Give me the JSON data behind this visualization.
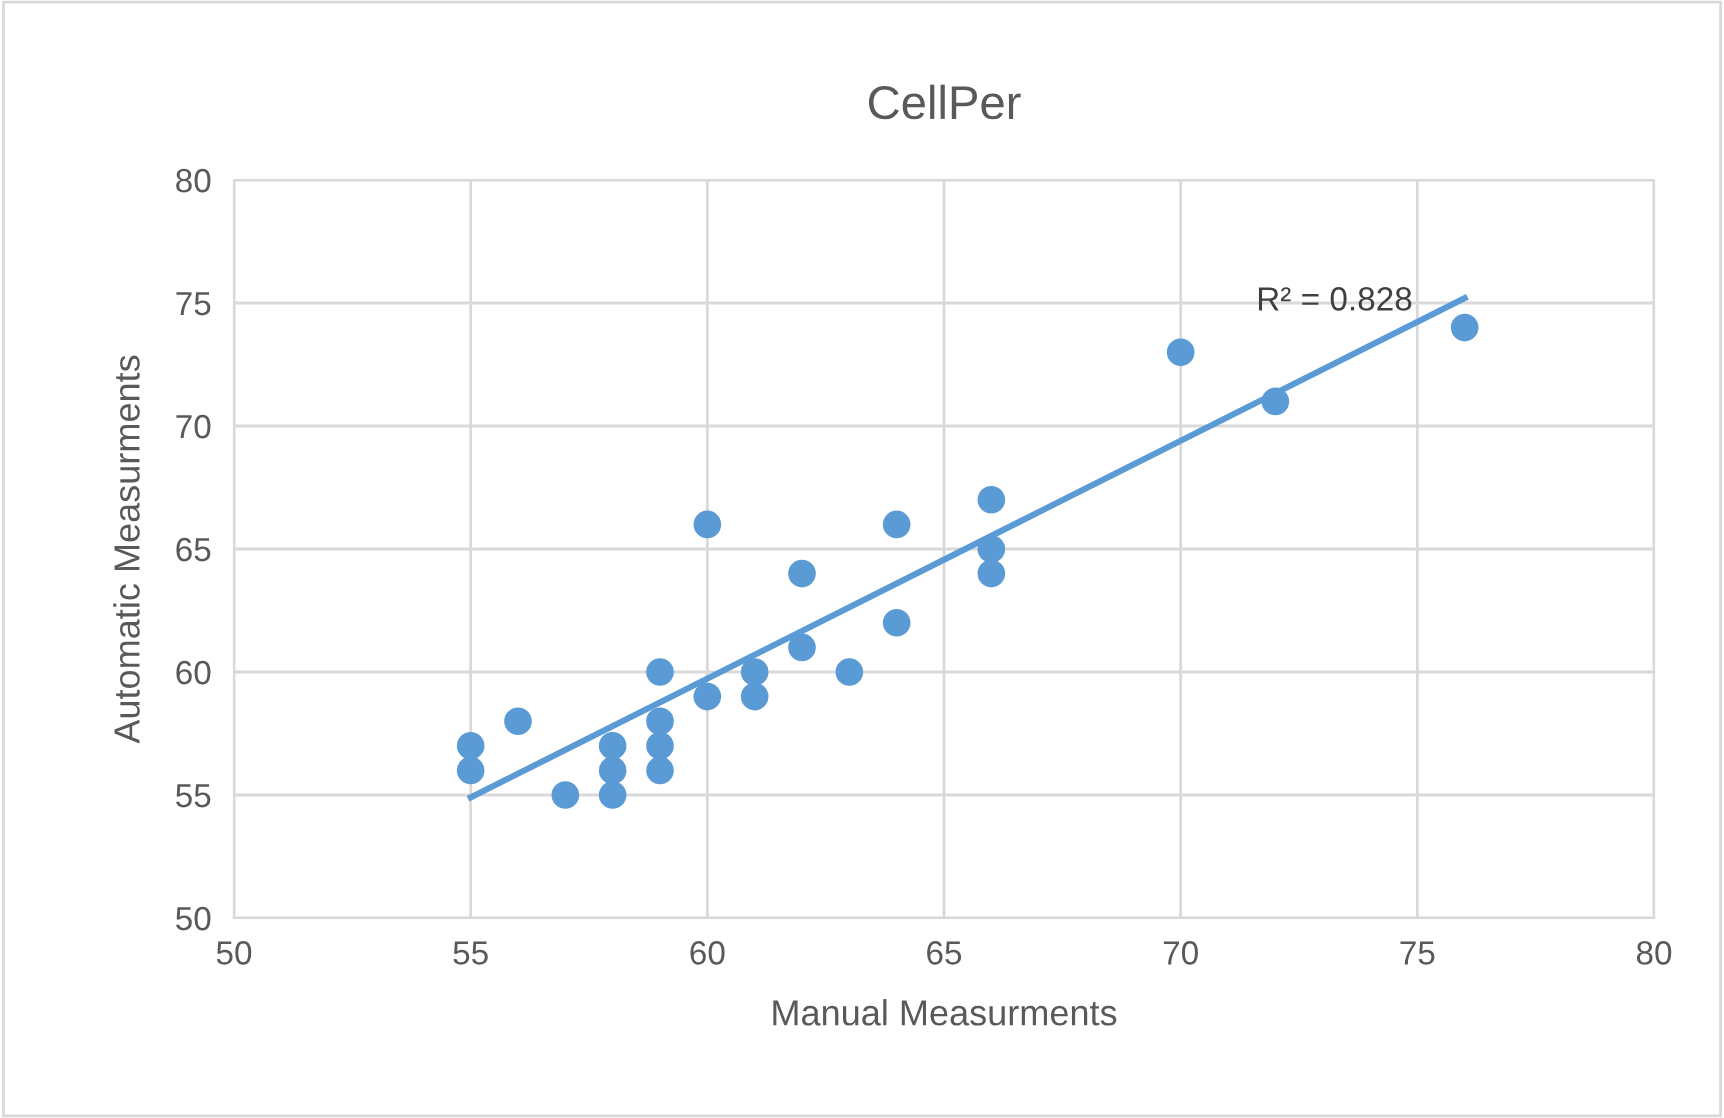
{
  "chart_data": {
    "type": "scatter",
    "title": "CellPer",
    "xlabel": "Manual Measurments",
    "ylabel": "Automatic Measurments",
    "x": [
      55,
      55,
      56,
      57,
      58,
      58,
      58,
      59,
      59,
      59,
      59,
      60,
      60,
      61,
      61,
      62,
      62,
      63,
      64,
      64,
      66,
      66,
      66,
      70,
      72,
      76
    ],
    "series": [
      {
        "color": "#5b9bd5",
        "marker": "circle",
        "values": [
          57,
          56,
          58,
          55,
          57,
          56,
          55,
          60,
          58,
          57,
          56,
          66,
          59,
          60,
          59,
          64,
          61,
          60,
          66,
          62,
          67,
          65,
          64,
          73,
          71,
          74
        ]
      },
      {
        "type": "line",
        "color": "#5b9bd5",
        "x": [
          55,
          76
        ],
        "values": [
          54.9,
          75.2
        ]
      }
    ],
    "annotations": [
      "R² = 0.828"
    ],
    "xlim": [
      50,
      80
    ],
    "xticks": [
      50,
      55,
      60,
      65,
      70,
      75,
      80
    ],
    "ylim": [
      50,
      80
    ],
    "yticks": [
      50,
      55,
      60,
      65,
      70,
      75,
      80
    ],
    "grid": true
  }
}
